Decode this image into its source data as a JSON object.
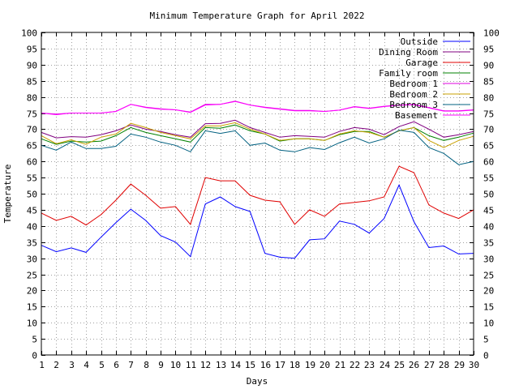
{
  "chart_data": {
    "type": "line",
    "title": "Minimum Temperature Graph for April 2022",
    "xlabel": "Days",
    "ylabel": "Temperature",
    "xlim": [
      1,
      30
    ],
    "ylim": [
      0,
      100
    ],
    "grid": true,
    "legend_position": "top-right",
    "x_ticks": [
      1,
      2,
      3,
      4,
      5,
      6,
      7,
      8,
      9,
      10,
      11,
      12,
      13,
      14,
      15,
      16,
      17,
      18,
      19,
      20,
      21,
      22,
      23,
      24,
      25,
      26,
      27,
      28,
      29,
      30
    ],
    "y_ticks": [
      0,
      5,
      10,
      15,
      20,
      25,
      30,
      35,
      40,
      45,
      50,
      55,
      60,
      65,
      70,
      75,
      80,
      85,
      90,
      95,
      100
    ],
    "x": [
      1,
      2,
      3,
      4,
      5,
      6,
      7,
      8,
      9,
      10,
      11,
      12,
      13,
      14,
      15,
      16,
      17,
      18,
      19,
      20,
      21,
      22,
      23,
      24,
      25,
      26,
      27,
      28,
      29,
      30
    ],
    "series": [
      {
        "name": "Outside",
        "color": "#0000ff",
        "values": [
          34,
          32,
          33.2,
          31.8,
          36.5,
          41,
          45.2,
          41.7,
          37,
          35,
          30.5,
          46.8,
          49,
          46,
          44.5,
          31.5,
          30.3,
          30,
          35.7,
          36,
          41.5,
          40.5,
          37.8,
          42.3,
          52.7,
          41.3,
          33.3,
          33.8,
          31.3,
          31.5
        ]
      },
      {
        "name": "Dining Room",
        "color": "#800080",
        "values": [
          69,
          67.3,
          67.7,
          67.5,
          68.3,
          69.5,
          71.3,
          70,
          69.3,
          68.3,
          67.5,
          71.7,
          71.8,
          72.8,
          70.5,
          69,
          67.5,
          68,
          67.8,
          67.5,
          69.3,
          70.5,
          70,
          68.3,
          70.8,
          72.3,
          70,
          67.5,
          68.3,
          69.3
        ]
      },
      {
        "name": "Garage",
        "color": "#e00000",
        "values": [
          44,
          41.7,
          43,
          40.3,
          43.5,
          48,
          53,
          49.5,
          45.5,
          46,
          40.5,
          55,
          54,
          54,
          49.5,
          48,
          47.5,
          40.5,
          45,
          43,
          46.8,
          47.3,
          47.8,
          49,
          58.5,
          56.5,
          46.5,
          44,
          42.3,
          45
        ]
      },
      {
        "name": "Family room",
        "color": "#008000",
        "values": [
          67,
          65.3,
          66.3,
          66,
          66.3,
          68,
          70.5,
          69,
          68,
          67,
          66,
          70.5,
          70.3,
          71.3,
          69.5,
          68.5,
          66.3,
          67,
          67,
          66.5,
          68.3,
          69.3,
          69.3,
          67.5,
          69.5,
          70.5,
          68,
          66.5,
          67.5,
          68.8
        ]
      },
      {
        "name": "Bedroom 1",
        "color": "#e000e0",
        "values": [
          75,
          74.7,
          75,
          75,
          75,
          75.5,
          77.7,
          76.8,
          76.3,
          76,
          75.3,
          77.7,
          77.7,
          78.7,
          77.5,
          76.8,
          76.3,
          75.8,
          75.8,
          75.5,
          75.9,
          77,
          76.5,
          77.1,
          77.5,
          77.7,
          76.7,
          75.7,
          75.7,
          76
        ]
      },
      {
        "name": "Bedroom 2",
        "color": "#c8a000",
        "values": [
          68,
          65.5,
          66.7,
          65.3,
          67.5,
          68.5,
          71.8,
          70.5,
          69,
          68,
          67,
          71,
          71,
          72,
          70,
          68.5,
          66.5,
          67,
          67,
          66.5,
          68.5,
          69.5,
          69,
          67.5,
          69.5,
          70.5,
          66.5,
          64.3,
          66.5,
          67.8
        ]
      },
      {
        "name": "Bedroom 3",
        "color": "#006080",
        "values": [
          65,
          63.5,
          66,
          64,
          64,
          64.7,
          68.5,
          67.5,
          66,
          65,
          63,
          69.5,
          68.7,
          69.5,
          65,
          65.7,
          63.5,
          63,
          64.3,
          63.7,
          65.8,
          67.5,
          65.7,
          67,
          69.7,
          69,
          64.3,
          62.5,
          59,
          60
        ]
      },
      {
        "name": "Basement",
        "color": "#ff00ff",
        "values": [
          75,
          74.5,
          75,
          75,
          75,
          75.5,
          77.7,
          76.7,
          76.2,
          76,
          75.2,
          77.5,
          77.7,
          78.6,
          77.5,
          76.7,
          76.2,
          75.7,
          75.7,
          75.5,
          75.9,
          76.9,
          76.4,
          77,
          77.4,
          77.6,
          76.6,
          75.6,
          75.6,
          75.9
        ]
      }
    ]
  }
}
